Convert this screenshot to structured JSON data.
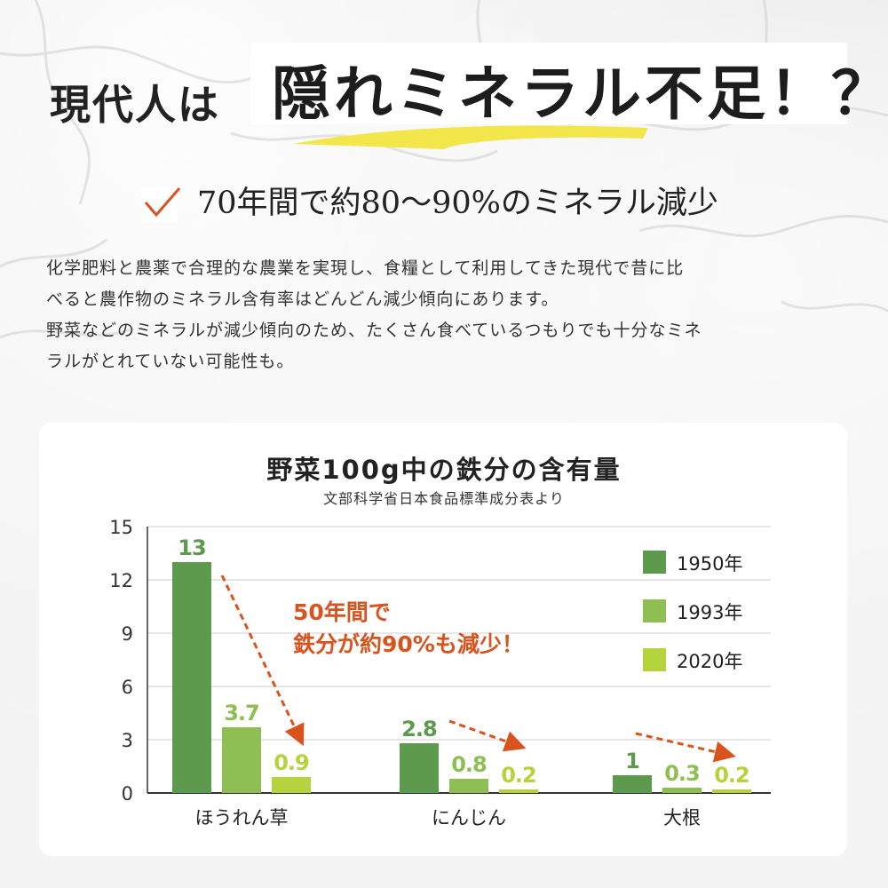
{
  "headline": {
    "lead": "現代人は",
    "emphasis": "隠れミネラル不足！？"
  },
  "subhead": {
    "check_icon": "check-icon",
    "text": "70年間で約80〜90%のミネラル減少"
  },
  "body": {
    "paragraph1_line1": "化学肥料と農薬で合理的な農業を実現し、食糧として利用してきた現代で昔に比",
    "paragraph1_line2": "べると農作物のミネラル含有率はどんどん減少傾向にあります。",
    "paragraph2_line1": "野菜などのミネラルが減少傾向のため、たくさん食べているつもりでも十分なミネ",
    "paragraph2_line2": "ラルがとれていない可能性も。"
  },
  "colors": {
    "series_1950": "#5e9a4d",
    "series_1993": "#8fbe52",
    "series_2020": "#b4d33c",
    "accent_orange": "#d9531e",
    "highlight_yellow": "#f2e64a"
  },
  "chart_data": {
    "type": "bar",
    "title": "野菜100g中の鉄分の含有量",
    "subtitle": "文部科学省日本食品標準成分表より",
    "categories": [
      "ほうれん草",
      "にんじん",
      "大根"
    ],
    "series": [
      {
        "name": "1950年",
        "values": [
          13,
          2.8,
          1
        ],
        "labels": [
          "13",
          "2.8",
          "1"
        ]
      },
      {
        "name": "1993年",
        "values": [
          3.7,
          0.8,
          0.3
        ],
        "labels": [
          "3.7",
          "0.8",
          "0.3"
        ]
      },
      {
        "name": "2020年",
        "values": [
          0.9,
          0.2,
          0.2
        ],
        "labels": [
          "0.9",
          "0.2",
          "0.2"
        ]
      }
    ],
    "ylim": [
      0,
      15
    ],
    "yticks": [
      "0",
      "3",
      "6",
      "9",
      "12",
      "15"
    ],
    "grid": true,
    "legend": "top-right",
    "annotation": {
      "line1": "50年間で",
      "line2": "鉄分が約90%も減少！"
    }
  }
}
